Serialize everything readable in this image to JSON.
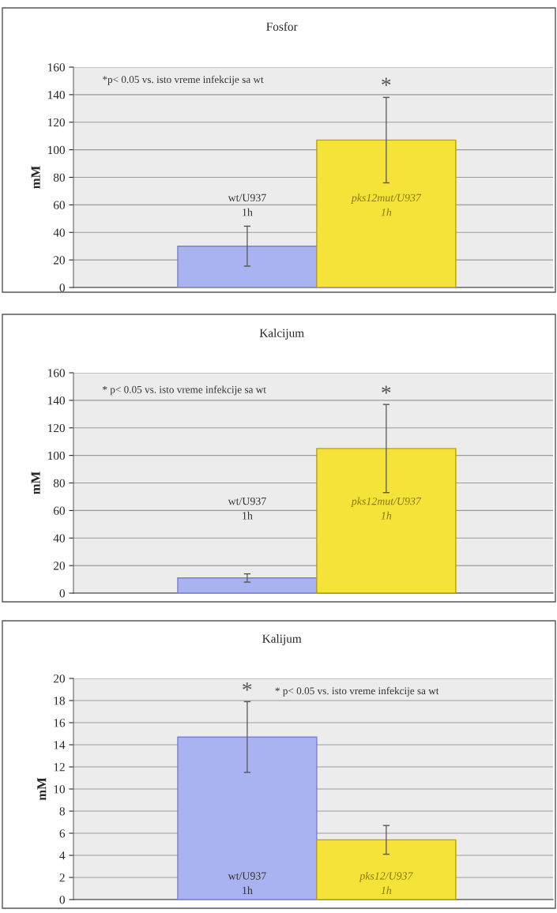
{
  "chart_data": [
    {
      "type": "bar",
      "title": "Fosfor",
      "ylabel": "mM",
      "categories": [
        "wt/U937\n1h",
        "pks12mut/U937\n1h"
      ],
      "values": [
        30,
        107
      ],
      "errors": [
        14.5,
        31
      ],
      "colors": [
        "#aab3f2",
        "#f6e33a"
      ],
      "ylim": [
        0,
        160
      ],
      "yticks": [
        0,
        20,
        40,
        60,
        80,
        100,
        120,
        140,
        160
      ],
      "grid": "y",
      "tick_labels": "y",
      "annotations": [
        "*p< 0.05 vs. isto vreme infekcije sa wt",
        "*"
      ]
    },
    {
      "type": "bar",
      "title": "Kalcijum",
      "ylabel": "mM",
      "categories": [
        "wt/U937\n1h",
        "pks12mut/U937\n1h"
      ],
      "values": [
        11,
        105
      ],
      "errors": [
        3,
        32
      ],
      "colors": [
        "#aab3f2",
        "#f6e33a"
      ],
      "ylim": [
        0,
        160
      ],
      "yticks": [
        0,
        20,
        40,
        60,
        80,
        100,
        120,
        140,
        160
      ],
      "grid": "y",
      "tick_labels": "y",
      "annotations": [
        "* p< 0.05 vs. isto vreme infekcije sa wt",
        "*"
      ]
    },
    {
      "type": "bar",
      "title": "Kalijum",
      "ylabel": "mM",
      "categories": [
        "wt/U937\n1h",
        "pks12/U937\n1h"
      ],
      "values": [
        14.7,
        5.4
      ],
      "errors": [
        3.2,
        1.3
      ],
      "colors": [
        "#aab3f2",
        "#f6e33a"
      ],
      "ylim": [
        0,
        20
      ],
      "yticks": [
        0,
        2,
        4,
        6,
        8,
        10,
        12,
        14,
        16,
        18,
        20
      ],
      "grid": "y",
      "tick_labels": "y",
      "annotations": [
        "* p< 0.05 vs. isto vreme infekcije sa wt",
        "*"
      ]
    }
  ]
}
